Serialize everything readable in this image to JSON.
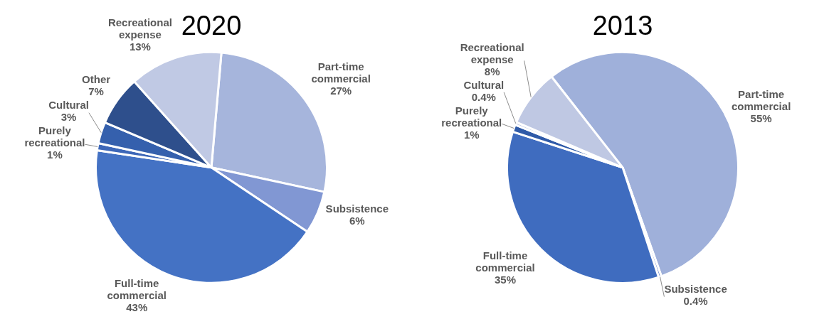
{
  "chart_data": [
    {
      "type": "pie",
      "title": "2020",
      "categories": [
        "Part-time commercial",
        "Subsistence",
        "Full-time commercial",
        "Purely recreational",
        "Cultural",
        "Other",
        "Recreational expense"
      ],
      "values": [
        27,
        6,
        43,
        1,
        3,
        7,
        13
      ],
      "value_labels": [
        "27%",
        "6%",
        "43%",
        "1%",
        "3%",
        "7%",
        "13%"
      ],
      "colors": [
        "#a6b5dc",
        "#8197d3",
        "#4472c4",
        "#3d67b8",
        "#3560ad",
        "#2e4f8c",
        "#c0c9e4"
      ],
      "legend": false
    },
    {
      "type": "pie",
      "title": "2013",
      "categories": [
        "Part-time commercial",
        "Subsistence",
        "Full-time commercial",
        "Purely recreational",
        "Cultural",
        "Recreational expense"
      ],
      "values": [
        55,
        0.4,
        35,
        1,
        0.4,
        8
      ],
      "value_labels": [
        "55%",
        "0.4%",
        "35%",
        "1%",
        "0.4%",
        "8%"
      ],
      "colors": [
        "#9fb0da",
        "#8197d3",
        "#3f6cbf",
        "#2f5aa8",
        "#c0c9e4",
        "#bfc8e3"
      ],
      "legend": false
    }
  ]
}
